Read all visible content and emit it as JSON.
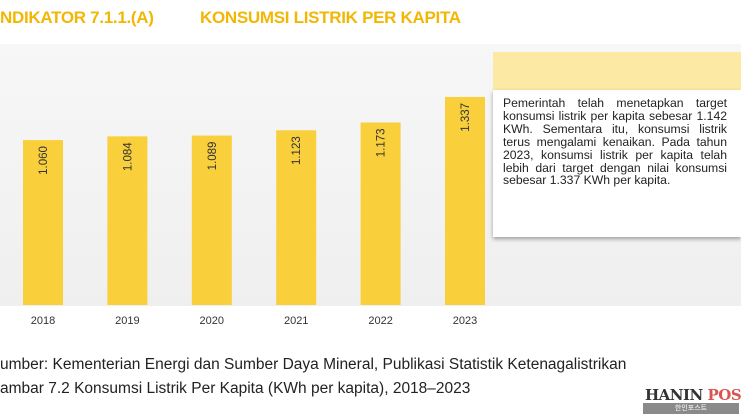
{
  "header": {
    "indicator": "NDIKATOR 7.1.1.(A)",
    "title": "KONSUMSI LISTRIK PER KAPITA"
  },
  "chart_data": {
    "type": "bar",
    "title": "Konsumsi Listrik Per Kapita (KWh per kapita), 2018–2023",
    "categories": [
      "2018",
      "2019",
      "2020",
      "2021",
      "2022",
      "2023"
    ],
    "values": [
      1060,
      1084,
      1089,
      1123,
      1173,
      1337
    ],
    "value_labels": [
      "1.060",
      "1.084",
      "1.089",
      "1.123",
      "1.173",
      "1.337"
    ],
    "xlabel": "",
    "ylabel": "",
    "ylim": [
      0,
      1700
    ],
    "grid": false,
    "bar_color": "#f9cf3c"
  },
  "note": {
    "text": "Pemerintah telah menetapkan target konsumsi listrik per kapita sebesar 1.142 KWh. Sementara itu, konsumsi listrik terus mengalami kenaikan. Pada tahun 2023, konsumsi listrik per kapita telah lebih dari target dengan nilai konsumsi sebesar 1.337 KWh per kapita."
  },
  "footer": {
    "source": "umber:   Kementerian Energi dan Sumber Daya Mineral, Publikasi Statistik Ketenagalistrikan",
    "caption": "ambar 7.2     Konsumsi Listrik Per Kapita (KWh per kapita), 2018–2023"
  },
  "watermark": {
    "name_a": "HANIN ",
    "name_b": "POST",
    "korean": "한인포스트"
  }
}
